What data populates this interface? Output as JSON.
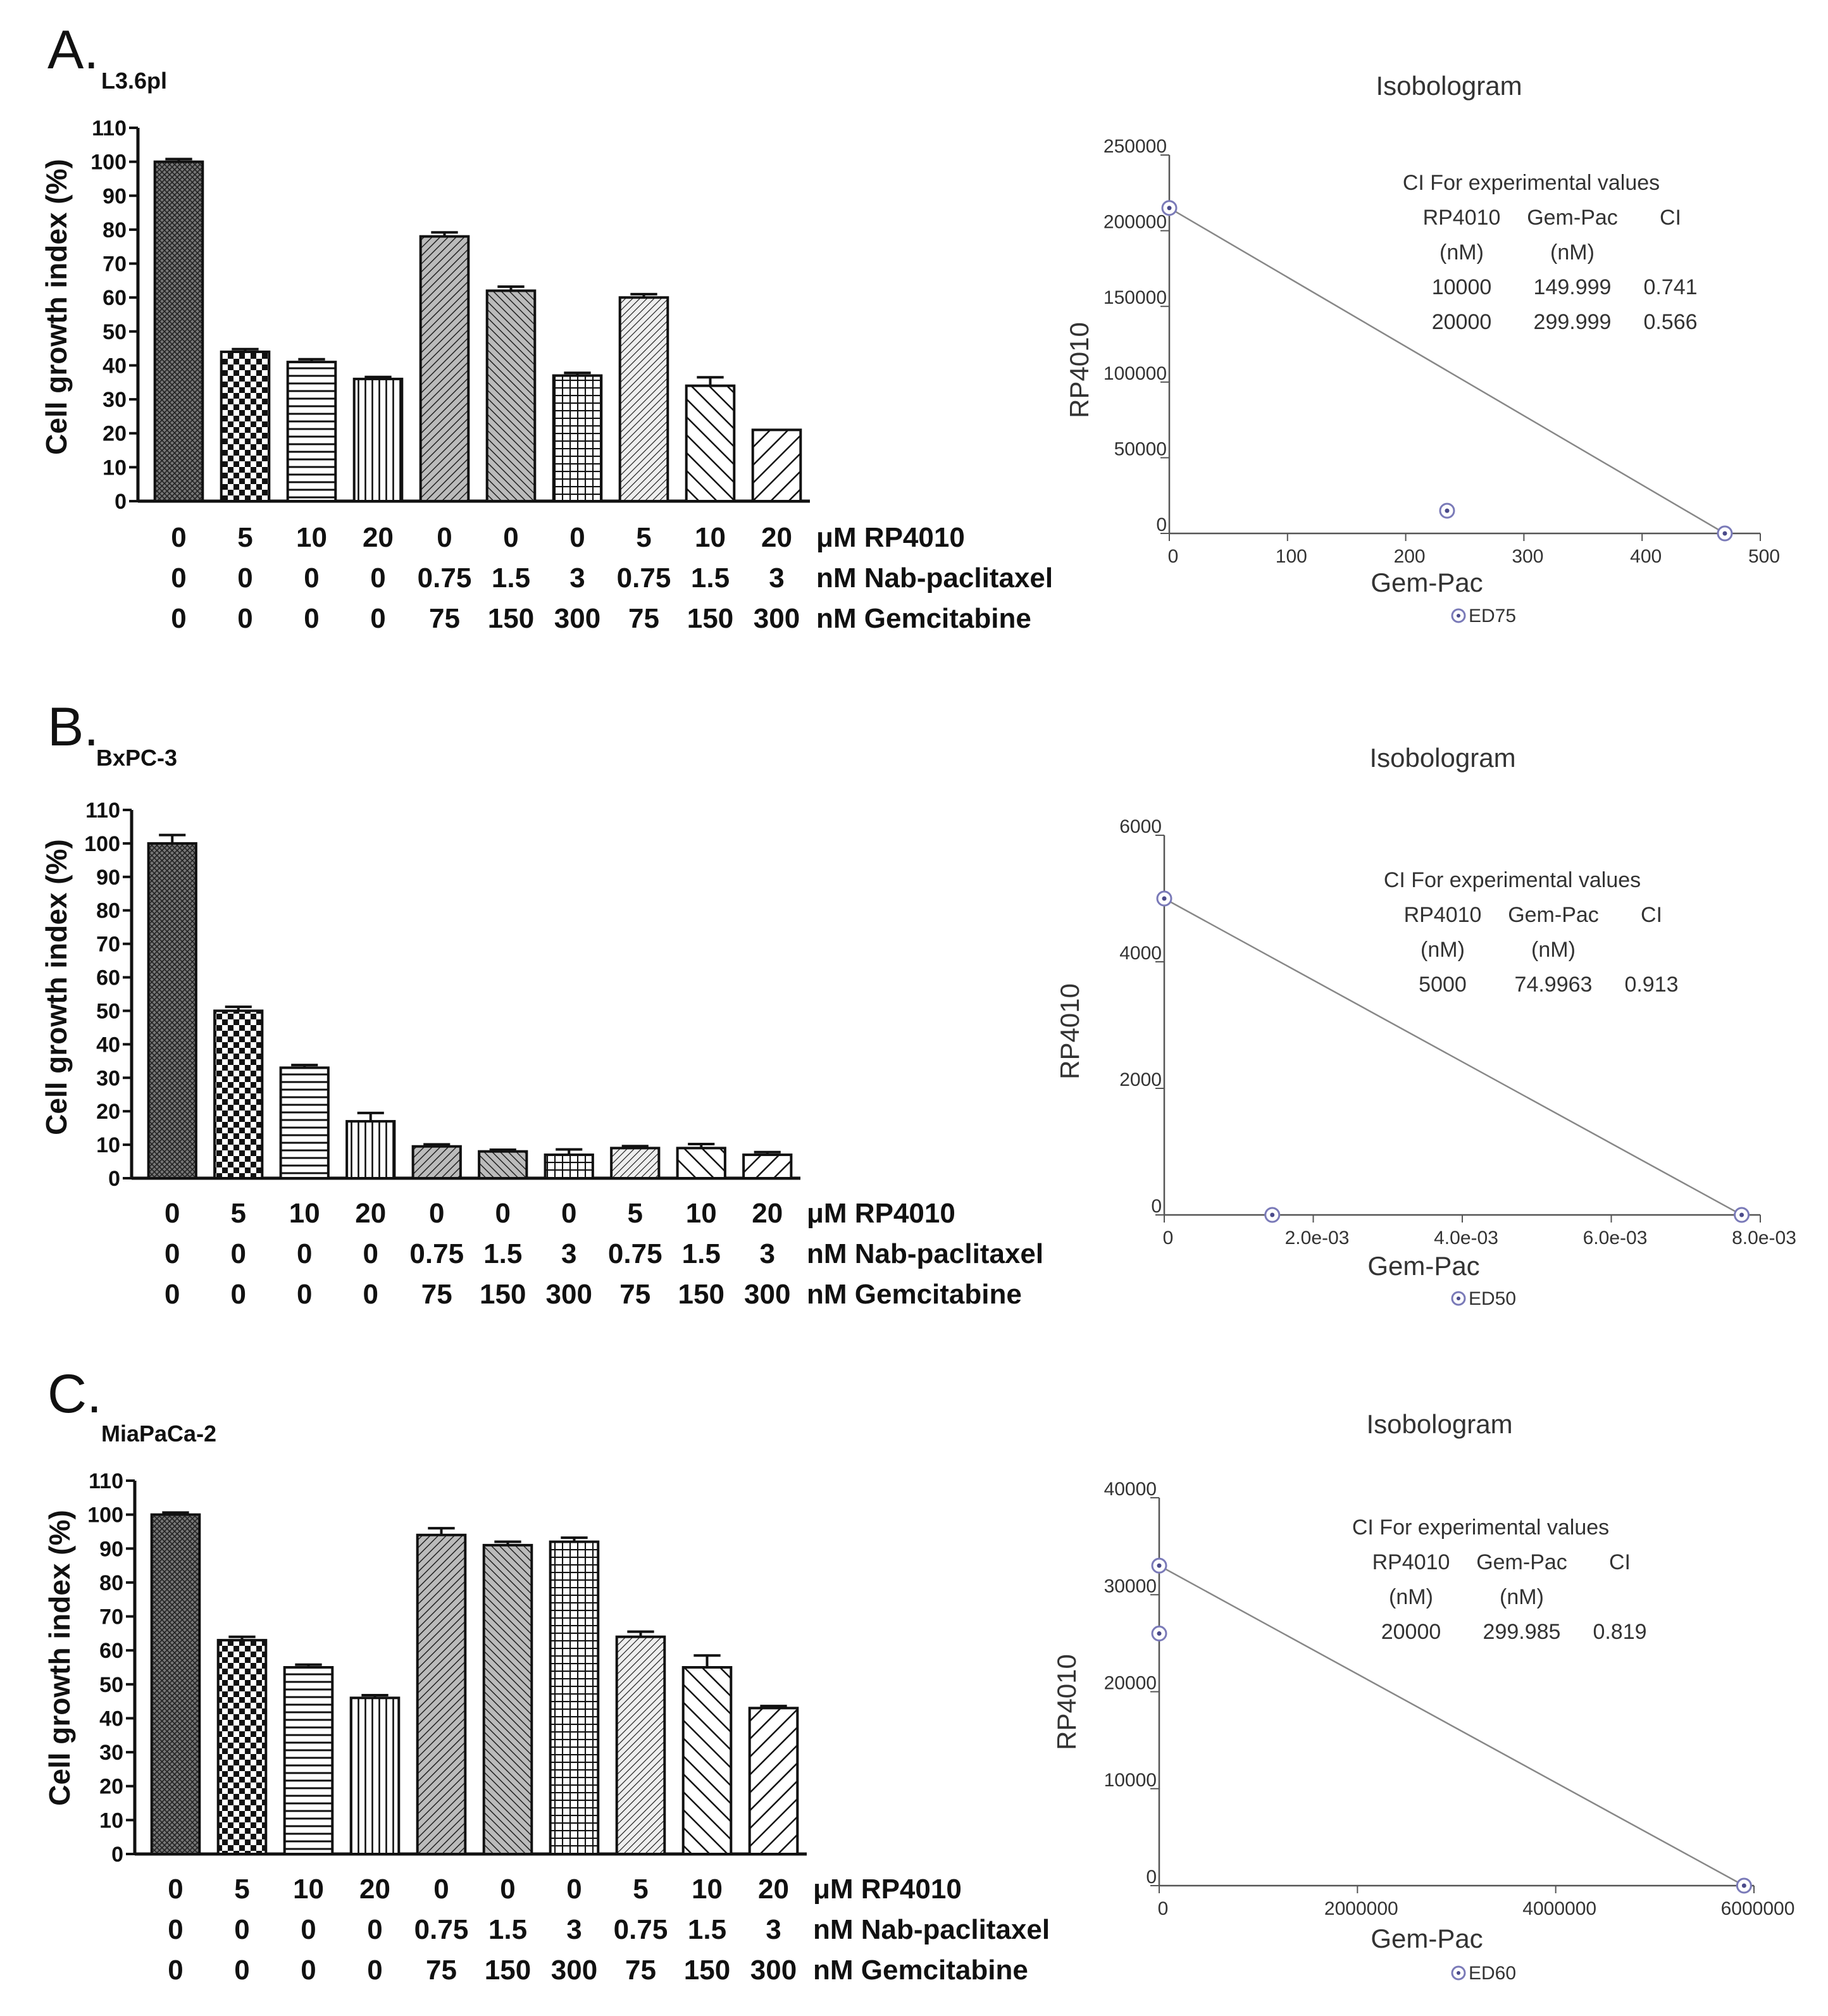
{
  "chart_data": [
    {
      "type": "bar",
      "panel": "A.",
      "cell_line": "L3.6pl",
      "ylabel": "Cell growth index (%)",
      "ylim": [
        0,
        110
      ],
      "yticks": [
        0,
        10,
        20,
        30,
        40,
        50,
        60,
        70,
        80,
        90,
        100,
        110
      ],
      "dose_rows": [
        {
          "label": "μM RP4010",
          "values": [
            "0",
            "5",
            "10",
            "20",
            "0",
            "0",
            "0",
            "5",
            "10",
            "20"
          ]
        },
        {
          "label": "nM Nab-paclitaxel",
          "values": [
            "0",
            "0",
            "0",
            "0",
            "0.75",
            "1.5",
            "3",
            "0.75",
            "1.5",
            "3"
          ]
        },
        {
          "label": "nM Gemcitabine",
          "values": [
            "0",
            "0",
            "0",
            "0",
            "75",
            "150",
            "300",
            "75",
            "150",
            "300"
          ]
        }
      ],
      "values": [
        100,
        44,
        41,
        36,
        78,
        62,
        37,
        60,
        34,
        21
      ],
      "errors": [
        0.8,
        0.8,
        0.8,
        0.6,
        1.2,
        1.2,
        0.8,
        1.0,
        2.5,
        0
      ],
      "patterns": [
        "dense",
        "check",
        "hlines",
        "vlines",
        "diagfwd",
        "diagback",
        "grid",
        "diagfwd2",
        "diagback-wide",
        "diagfwd-wide"
      ]
    },
    {
      "type": "bar",
      "panel": "B.",
      "cell_line": "BxPC-3",
      "ylabel": "Cell growth index (%)",
      "ylim": [
        0,
        110
      ],
      "yticks": [
        0,
        10,
        20,
        30,
        40,
        50,
        60,
        70,
        80,
        90,
        100,
        110
      ],
      "dose_rows": [
        {
          "label": "μM RP4010",
          "values": [
            "0",
            "5",
            "10",
            "20",
            "0",
            "0",
            "0",
            "5",
            "10",
            "20"
          ]
        },
        {
          "label": "nM Nab-paclitaxel",
          "values": [
            "0",
            "0",
            "0",
            "0",
            "0.75",
            "1.5",
            "3",
            "0.75",
            "1.5",
            "3"
          ]
        },
        {
          "label": "nM Gemcitabine",
          "values": [
            "0",
            "0",
            "0",
            "0",
            "75",
            "150",
            "300",
            "75",
            "150",
            "300"
          ]
        }
      ],
      "values": [
        100,
        50,
        33,
        17,
        9.5,
        8,
        7,
        9,
        9,
        7
      ],
      "errors": [
        2.5,
        1.2,
        0.8,
        2.5,
        0.6,
        0.5,
        1.6,
        0.6,
        1.2,
        0.8
      ],
      "patterns": [
        "dense",
        "check",
        "hlines",
        "vlines",
        "diagfwd",
        "diagback",
        "grid",
        "diagfwd2",
        "diagback-wide",
        "diagfwd-wide"
      ]
    },
    {
      "type": "bar",
      "panel": "C.",
      "cell_line": "MiaPaCa-2",
      "ylabel": "Cell growth index (%)",
      "ylim": [
        0,
        110
      ],
      "yticks": [
        0,
        10,
        20,
        30,
        40,
        50,
        60,
        70,
        80,
        90,
        100,
        110
      ],
      "dose_rows": [
        {
          "label": "μM RP4010",
          "values": [
            "0",
            "5",
            "10",
            "20",
            "0",
            "0",
            "0",
            "5",
            "10",
            "20"
          ]
        },
        {
          "label": "nM Nab-paclitaxel",
          "values": [
            "0",
            "0",
            "0",
            "0",
            "0.75",
            "1.5",
            "3",
            "0.75",
            "1.5",
            "3"
          ]
        },
        {
          "label": "nM Gemcitabine",
          "values": [
            "0",
            "0",
            "0",
            "0",
            "75",
            "150",
            "300",
            "75",
            "150",
            "300"
          ]
        }
      ],
      "values": [
        100,
        63,
        55,
        46,
        94,
        91,
        92,
        64,
        55,
        43
      ],
      "errors": [
        0.6,
        1.0,
        0.8,
        0.8,
        2.0,
        1.0,
        1.2,
        1.5,
        3.5,
        0.6
      ],
      "patterns": [
        "dense",
        "check",
        "hlines",
        "vlines",
        "diagfwd",
        "diagback",
        "grid",
        "diagfwd2",
        "diagback-wide",
        "diagfwd-wide"
      ]
    },
    {
      "type": "scatter",
      "subtype": "isobologram",
      "title": "Isobologram",
      "xlabel": "Gem-Pac",
      "ylabel": "RP4010",
      "xlim": [
        0,
        500
      ],
      "ylim": [
        0,
        250000
      ],
      "xticks": [
        {
          "v": 0,
          "t": "0"
        },
        {
          "v": 100,
          "t": "100"
        },
        {
          "v": 200,
          "t": "200"
        },
        {
          "v": 300,
          "t": "300"
        },
        {
          "v": 400,
          "t": "400"
        },
        {
          "v": 500,
          "t": "500"
        }
      ],
      "yticks": [
        {
          "v": 0,
          "t": "0"
        },
        {
          "v": 50000,
          "t": "50000"
        },
        {
          "v": 100000,
          "t": "100000"
        },
        {
          "v": 150000,
          "t": "150000"
        },
        {
          "v": 200000,
          "t": "200000"
        },
        {
          "v": 250000,
          "t": "250000"
        }
      ],
      "line": [
        [
          0,
          215000
        ],
        [
          470,
          0
        ]
      ],
      "points": [
        [
          0,
          215000
        ],
        [
          235,
          15000
        ],
        [
          470,
          0
        ]
      ],
      "legend": "ED75",
      "ci_table": {
        "title": "CI For experimental values",
        "headers": [
          "RP4010",
          "Gem-Pac",
          "CI"
        ],
        "units": [
          "(nM)",
          "(nM)",
          ""
        ],
        "rows": [
          [
            "10000",
            "149.999",
            "0.741"
          ],
          [
            "20000",
            "299.999",
            "0.566"
          ]
        ]
      }
    },
    {
      "type": "scatter",
      "subtype": "isobologram",
      "title": "Isobologram",
      "xlabel": "Gem-Pac",
      "ylabel": "RP4010",
      "xlim": [
        0,
        0.008
      ],
      "ylim": [
        0,
        6000
      ],
      "xticks": [
        {
          "v": 0,
          "t": "0"
        },
        {
          "v": 0.002,
          "t": "2.0e-03"
        },
        {
          "v": 0.004,
          "t": "4.0e-03"
        },
        {
          "v": 0.006,
          "t": "6.0e-03"
        },
        {
          "v": 0.008,
          "t": "8.0e-03"
        }
      ],
      "yticks": [
        {
          "v": 0,
          "t": "0"
        },
        {
          "v": 2000,
          "t": "2000"
        },
        {
          "v": 4000,
          "t": "4000"
        },
        {
          "v": 6000,
          "t": "6000"
        }
      ],
      "line": [
        [
          0,
          5000
        ],
        [
          0.00775,
          0
        ]
      ],
      "points": [
        [
          0,
          5000
        ],
        [
          0.00145,
          0
        ],
        [
          0.00775,
          0
        ]
      ],
      "legend": "ED50",
      "ci_table": {
        "title": "CI For experimental values",
        "headers": [
          "RP4010",
          "Gem-Pac",
          "CI"
        ],
        "units": [
          "(nM)",
          "(nM)",
          ""
        ],
        "rows": [
          [
            "5000",
            "74.9963",
            "0.913"
          ]
        ]
      }
    },
    {
      "type": "scatter",
      "subtype": "isobologram",
      "title": "Isobologram",
      "xlabel": "Gem-Pac",
      "ylabel": "RP4010",
      "xlim": [
        0,
        6000000
      ],
      "ylim": [
        0,
        40000
      ],
      "xticks": [
        {
          "v": 0,
          "t": "0"
        },
        {
          "v": 2000000,
          "t": "2000000"
        },
        {
          "v": 4000000,
          "t": "4000000"
        },
        {
          "v": 6000000,
          "t": "6000000"
        }
      ],
      "yticks": [
        {
          "v": 0,
          "t": "0"
        },
        {
          "v": 10000,
          "t": "10000"
        },
        {
          "v": 20000,
          "t": "20000"
        },
        {
          "v": 30000,
          "t": "30000"
        },
        {
          "v": 40000,
          "t": "40000"
        }
      ],
      "line": [
        [
          0,
          33000
        ],
        [
          5900000,
          0
        ]
      ],
      "points": [
        [
          0,
          33000
        ],
        [
          0,
          26000
        ],
        [
          5900000,
          0
        ]
      ],
      "legend": "ED60",
      "ci_table": {
        "title": "CI For experimental values",
        "headers": [
          "RP4010",
          "Gem-Pac",
          "CI"
        ],
        "units": [
          "(nM)",
          "(nM)",
          ""
        ],
        "rows": [
          [
            "20000",
            "299.985",
            "0.819"
          ]
        ]
      }
    }
  ]
}
